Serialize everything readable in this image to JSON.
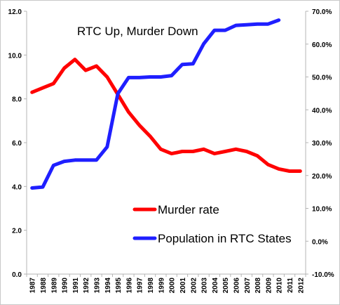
{
  "chart_data": {
    "type": "line",
    "title": "RTC Up, Murder Down",
    "x": [
      "1987",
      "1988",
      "1989",
      "1990",
      "1991",
      "1992",
      "1993",
      "1994",
      "1995",
      "1996",
      "1997",
      "1998",
      "1999",
      "2000",
      "2001",
      "2002",
      "2003",
      "2004",
      "2005",
      "2006",
      "2007",
      "2008",
      "2009",
      "2010",
      "2011",
      "2012"
    ],
    "series": [
      {
        "name": "Murder rate",
        "axis": "left",
        "color": "#ff0000",
        "values": [
          8.3,
          8.5,
          8.7,
          9.4,
          9.8,
          9.3,
          9.5,
          9.0,
          8.2,
          7.4,
          6.8,
          6.3,
          5.7,
          5.5,
          5.6,
          5.6,
          5.7,
          5.5,
          5.6,
          5.7,
          5.6,
          5.4,
          5.0,
          4.8,
          4.7,
          4.7
        ]
      },
      {
        "name": "Population in RTC States",
        "axis": "right",
        "color": "#1f1fff",
        "values": [
          16.2,
          16.5,
          23.1,
          24.3,
          24.7,
          24.7,
          24.7,
          28.7,
          44.9,
          49.8,
          49.8,
          50.0,
          50.0,
          50.4,
          53.8,
          54.0,
          60.1,
          64.2,
          64.2,
          65.7,
          65.9,
          66.1,
          66.1,
          67.3,
          null,
          null
        ]
      }
    ],
    "ylim": [
      0,
      12
    ],
    "y2lim": [
      -10,
      70
    ],
    "yticks": [
      "0.0",
      "2.0",
      "4.0",
      "6.0",
      "8.0",
      "10.0",
      "12.0"
    ],
    "y2ticks": [
      "-10.0%",
      "0.0%",
      "10.0%",
      "20.0%",
      "30.0%",
      "40.0%",
      "50.0%",
      "60.0%",
      "70.0%"
    ],
    "grid": false,
    "legend": "center-bottom"
  }
}
